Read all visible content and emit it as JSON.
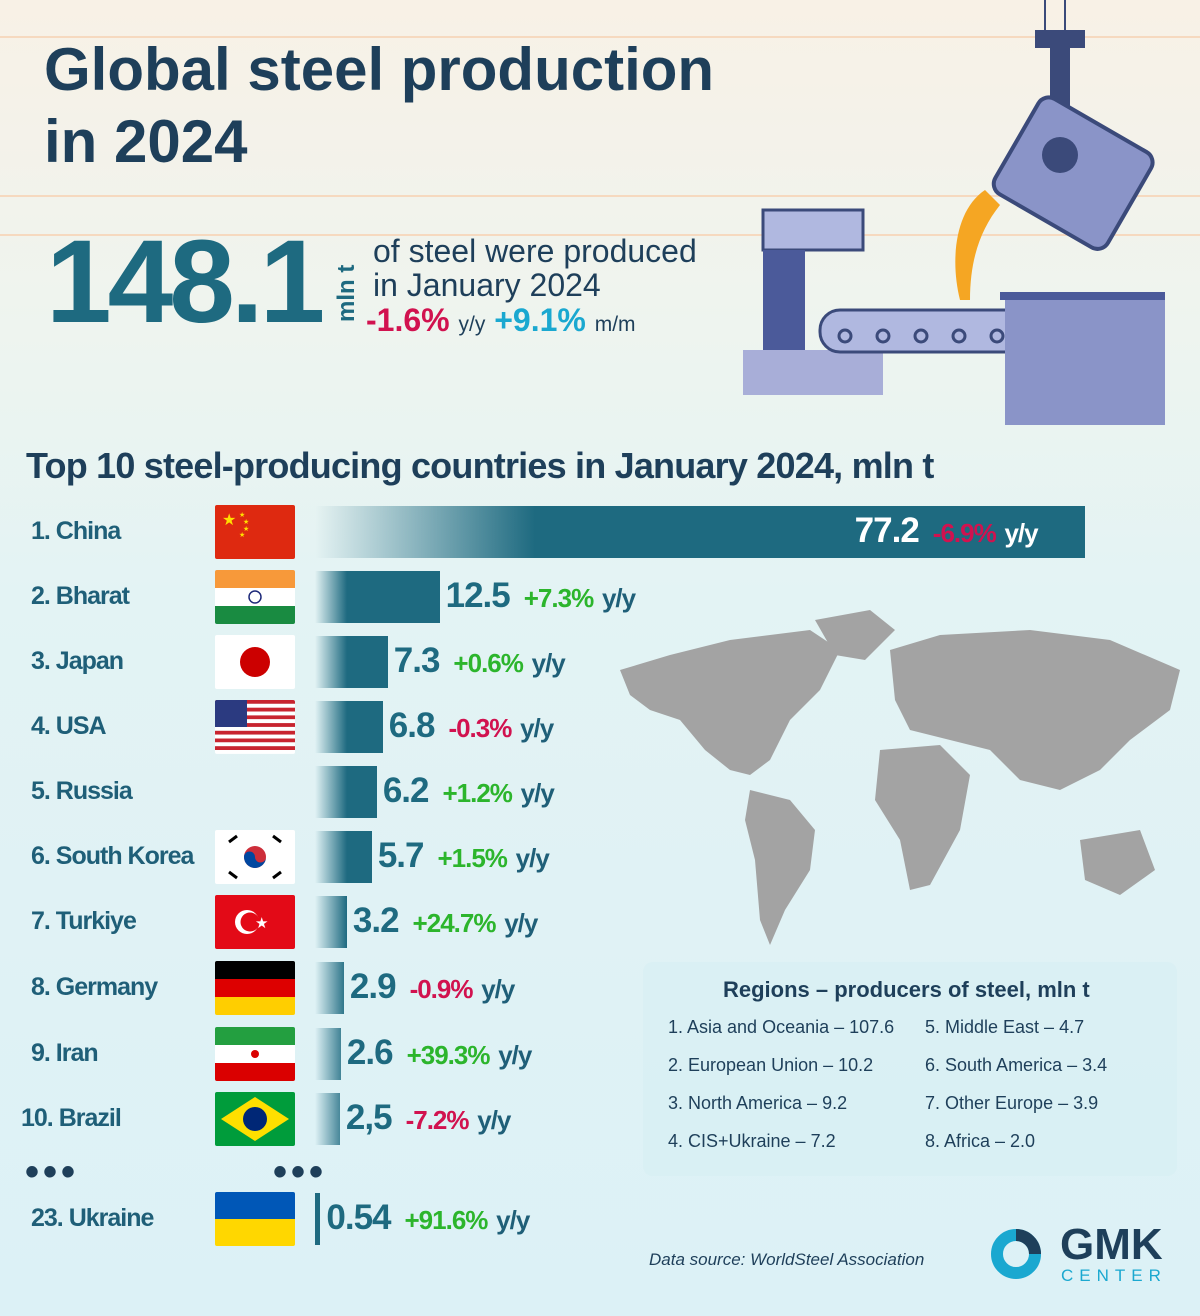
{
  "header": {
    "title_line1": "Global steel production",
    "title_line2": "in 2024",
    "total_value": "148.1",
    "total_unit": "mln t",
    "desc_line1": "of steel were produced",
    "desc_line2": "in January 2024",
    "yoy": "-1.6%",
    "yoy_label": "y/y",
    "mom": "+9.1%",
    "mom_label": "m/m"
  },
  "chart_data": {
    "type": "bar",
    "title": "Top 10 steel-producing countries in January 2024, mln t",
    "categories": [
      "1. China",
      "2. Bharat",
      "3. Japan",
      "4. USA",
      "5. Russia",
      "6. South Korea",
      "7. Turkiye",
      "8. Germany",
      "9. Iran",
      "10. Brazil",
      "23. Ukraine"
    ],
    "values": [
      77.2,
      12.5,
      7.3,
      6.8,
      6.2,
      5.7,
      3.2,
      2.9,
      2.6,
      2.5,
      0.54
    ],
    "value_labels": [
      "77.2",
      "12.5",
      "7.3",
      "6.8",
      "6.2",
      "5.7",
      "3.2",
      "2.9",
      "2.6",
      "2,5",
      "0.54"
    ],
    "changes": [
      "-6.9%",
      "+7.3%",
      "+0.6%",
      "-0.3%",
      "+1.2%",
      "+1.5%",
      "+24.7%",
      "-0.9%",
      "+39.3%",
      "-7.2%",
      "+91.6%"
    ],
    "change_suffix": "y/y",
    "ellipsis": "•••",
    "colors": {
      "bar": "#1e6a80",
      "negative": "#d1124f",
      "positive": "#2cb52c"
    }
  },
  "regions": {
    "title": "Regions  – producers of steel, mln t",
    "items": [
      "1. Asia and Oceania – 107.6",
      "2. European Union – 10.2",
      "3. North America – 9.2",
      "4. CIS+Ukraine – 7.2",
      "5. Middle East – 4.7",
      "6. South America – 3.4",
      "7. Other Europe – 3.9",
      "8. Africa – 2.0"
    ]
  },
  "footer": {
    "source": "Data source: WorldSteel Association",
    "logo": "GMK",
    "logo_sub": "CENTER"
  }
}
